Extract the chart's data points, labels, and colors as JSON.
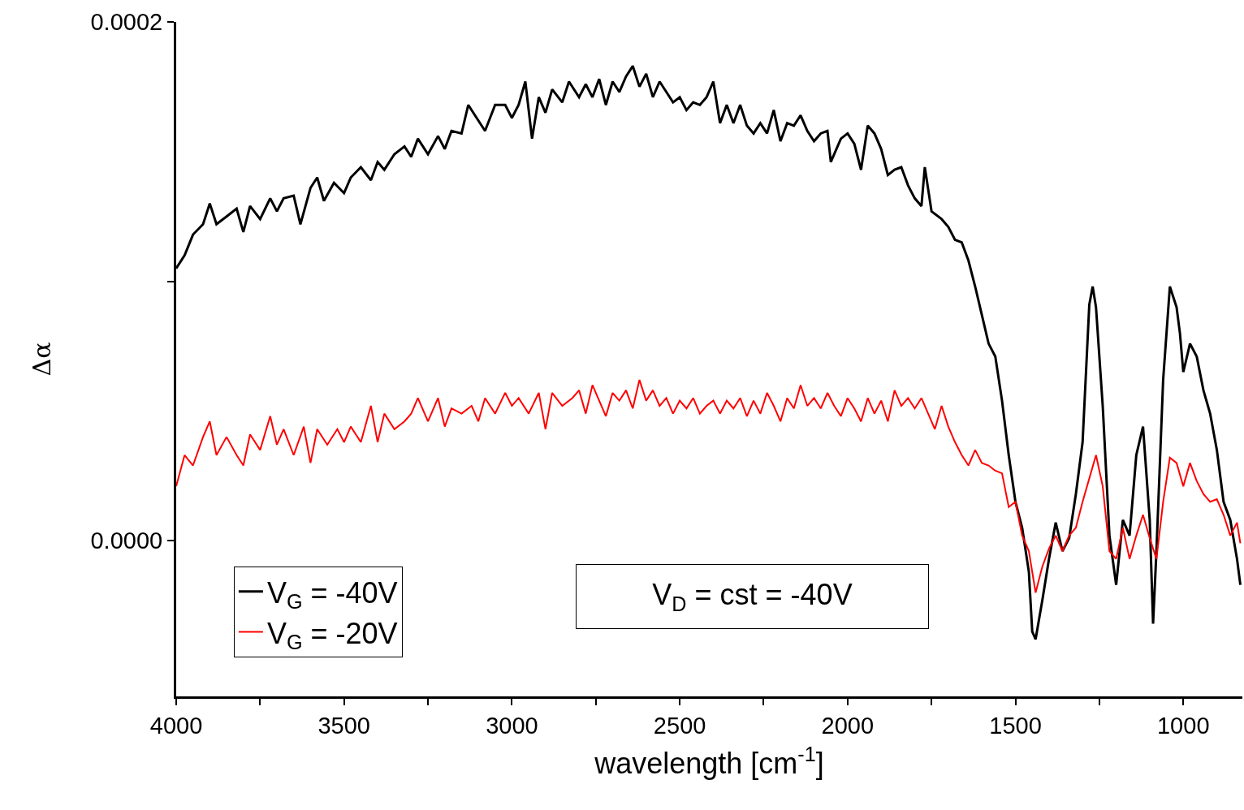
{
  "chart_data": {
    "type": "line",
    "xlabel": "wavelength [cm$^{-1}$]",
    "ylabel": "Δα",
    "xlim": [
      4000,
      824
    ],
    "ylim": [
      -6e-05,
      0.0002
    ],
    "xticks": [
      4000,
      {
        "value": 3750,
        "label": null
      },
      3500,
      {
        "value": 3250,
        "label": null
      },
      3000,
      {
        "value": 2750,
        "label": null
      },
      2500,
      {
        "value": 2250,
        "label": null
      },
      2000,
      {
        "value": 1750,
        "label": null
      },
      1500,
      {
        "value": 1250,
        "label": null
      },
      1000
    ],
    "yticks": [
      {
        "value": 0,
        "label": "0.0000"
      },
      {
        "value": 0.0001,
        "label": null
      },
      {
        "value": 0.0002,
        "label": "0.0002"
      }
    ],
    "grid": false,
    "legend": "bottom left",
    "marker": "none",
    "line_style": "solid",
    "annotations": [
      "V$_{D}$ = cst = -40V"
    ],
    "series": [
      {
        "name": "V$_{G}$ = -40V",
        "color": "#000000",
        "x": [
          4000,
          3975,
          3950,
          3920,
          3900,
          3880,
          3850,
          3820,
          3800,
          3780,
          3750,
          3720,
          3700,
          3680,
          3650,
          3630,
          3600,
          3580,
          3560,
          3530,
          3500,
          3480,
          3450,
          3420,
          3400,
          3380,
          3350,
          3320,
          3300,
          3280,
          3250,
          3220,
          3200,
          3180,
          3150,
          3130,
          3100,
          3080,
          3050,
          3020,
          3000,
          2980,
          2960,
          2940,
          2920,
          2900,
          2880,
          2850,
          2830,
          2800,
          2780,
          2760,
          2740,
          2720,
          2700,
          2680,
          2660,
          2640,
          2620,
          2600,
          2580,
          2560,
          2540,
          2520,
          2500,
          2480,
          2460,
          2440,
          2420,
          2400,
          2380,
          2360,
          2340,
          2320,
          2300,
          2280,
          2260,
          2240,
          2220,
          2200,
          2180,
          2160,
          2140,
          2120,
          2100,
          2080,
          2060,
          2050,
          2020,
          2000,
          1980,
          1960,
          1940,
          1920,
          1900,
          1880,
          1860,
          1840,
          1820,
          1800,
          1780,
          1770,
          1750,
          1720,
          1700,
          1680,
          1660,
          1640,
          1620,
          1600,
          1580,
          1560,
          1540,
          1520,
          1500,
          1480,
          1460,
          1450,
          1440,
          1420,
          1400,
          1380,
          1360,
          1340,
          1320,
          1300,
          1280,
          1270,
          1260,
          1240,
          1220,
          1200,
          1180,
          1160,
          1140,
          1120,
          1100,
          1090,
          1080,
          1060,
          1040,
          1020,
          1010,
          1000,
          980,
          960,
          940,
          920,
          900,
          880,
          860,
          840,
          830
        ],
        "values": [
          0.000105,
          0.00011,
          0.000118,
          0.000122,
          0.00013,
          0.000122,
          0.000125,
          0.000128,
          0.000119,
          0.000129,
          0.000124,
          0.000132,
          0.000127,
          0.000132,
          0.000133,
          0.000122,
          0.000136,
          0.00014,
          0.000131,
          0.000138,
          0.000134,
          0.00014,
          0.000144,
          0.000139,
          0.000146,
          0.000143,
          0.000149,
          0.000152,
          0.000148,
          0.000155,
          0.000149,
          0.000156,
          0.000151,
          0.000158,
          0.000157,
          0.000168,
          0.000162,
          0.000158,
          0.000168,
          0.000168,
          0.000163,
          0.000168,
          0.000177,
          0.000155,
          0.000171,
          0.000165,
          0.000174,
          0.000169,
          0.000177,
          0.000171,
          0.000176,
          0.000171,
          0.000178,
          0.000168,
          0.000177,
          0.000173,
          0.000179,
          0.000183,
          0.000175,
          0.00018,
          0.000171,
          0.000177,
          0.000173,
          0.000169,
          0.000171,
          0.000166,
          0.000169,
          0.000168,
          0.000171,
          0.000177,
          0.000161,
          0.000168,
          0.000161,
          0.000168,
          0.00016,
          0.000157,
          0.000161,
          0.000157,
          0.000166,
          0.000154,
          0.000161,
          0.00016,
          0.000164,
          0.000158,
          0.000154,
          0.000157,
          0.000158,
          0.000146,
          0.000155,
          0.000157,
          0.000153,
          0.000143,
          0.00016,
          0.000157,
          0.000151,
          0.000141,
          0.000143,
          0.000144,
          0.000137,
          0.000132,
          0.000129,
          0.000144,
          0.000127,
          0.000124,
          0.000121,
          0.000116,
          0.000115,
          0.000108,
          9.8e-05,
          8.7e-05,
          7.6e-05,
          7.1e-05,
          5.4e-05,
          3.3e-05,
          1.5e-05,
          5e-06,
          -1.2e-05,
          -3.5e-05,
          -3.8e-05,
          -2.3e-05,
          -7e-06,
          7e-06,
          -4e-06,
          1e-06,
          1.8e-05,
          3.8e-05,
          9.1e-05,
          9.8e-05,
          9e-05,
          5.2e-05,
          2e-06,
          -1.7e-05,
          8e-06,
          2e-06,
          3.3e-05,
          4.4e-05,
          8e-06,
          -3.2e-05,
          -4e-06,
          6.2e-05,
          9.8e-05,
          9e-05,
          8e-05,
          6.5e-05,
          7.6e-05,
          7.1e-05,
          5.8e-05,
          4.9e-05,
          3.5e-05,
          1.5e-05,
          8e-06,
          -7e-06,
          -1.7e-05
        ]
      },
      {
        "name": "V$_{G}$ = -20V",
        "color": "#ff0000",
        "x": [
          4000,
          3975,
          3950,
          3920,
          3900,
          3880,
          3850,
          3820,
          3800,
          3780,
          3750,
          3720,
          3700,
          3680,
          3650,
          3620,
          3600,
          3580,
          3550,
          3520,
          3500,
          3480,
          3450,
          3420,
          3400,
          3380,
          3350,
          3320,
          3300,
          3280,
          3250,
          3220,
          3200,
          3180,
          3150,
          3120,
          3100,
          3080,
          3050,
          3020,
          3000,
          2980,
          2950,
          2920,
          2900,
          2880,
          2850,
          2820,
          2800,
          2780,
          2760,
          2740,
          2720,
          2700,
          2680,
          2660,
          2640,
          2620,
          2600,
          2580,
          2560,
          2540,
          2520,
          2500,
          2480,
          2460,
          2440,
          2420,
          2400,
          2380,
          2360,
          2340,
          2320,
          2300,
          2280,
          2260,
          2240,
          2220,
          2200,
          2180,
          2160,
          2140,
          2120,
          2100,
          2080,
          2060,
          2040,
          2020,
          2000,
          1980,
          1960,
          1940,
          1920,
          1900,
          1880,
          1860,
          1840,
          1820,
          1800,
          1780,
          1760,
          1740,
          1720,
          1700,
          1680,
          1660,
          1640,
          1620,
          1600,
          1580,
          1560,
          1540,
          1520,
          1500,
          1480,
          1460,
          1440,
          1420,
          1400,
          1380,
          1360,
          1340,
          1320,
          1300,
          1280,
          1260,
          1240,
          1220,
          1200,
          1180,
          1160,
          1140,
          1120,
          1100,
          1080,
          1060,
          1040,
          1020,
          1000,
          980,
          960,
          940,
          920,
          900,
          880,
          860,
          840,
          830
        ],
        "values": [
          2.1e-05,
          3.3e-05,
          2.9e-05,
          4e-05,
          4.6e-05,
          3.3e-05,
          4e-05,
          3.3e-05,
          2.9e-05,
          4.1e-05,
          3.5e-05,
          4.8e-05,
          3.7e-05,
          4.3e-05,
          3.3e-05,
          4.4e-05,
          3e-05,
          4.3e-05,
          3.7e-05,
          4.3e-05,
          3.8e-05,
          4.4e-05,
          3.8e-05,
          5.2e-05,
          3.8e-05,
          4.9e-05,
          4.3e-05,
          4.6e-05,
          4.9e-05,
          5.5e-05,
          4.6e-05,
          5.5e-05,
          4.4e-05,
          5.1e-05,
          4.9e-05,
          5.2e-05,
          4.6e-05,
          5.5e-05,
          4.9e-05,
          5.7e-05,
          5.2e-05,
          5.5e-05,
          4.9e-05,
          5.7e-05,
          4.3e-05,
          5.7e-05,
          5.2e-05,
          5.5e-05,
          5.8e-05,
          4.9e-05,
          6e-05,
          5.4e-05,
          4.8e-05,
          5.7e-05,
          5.4e-05,
          5.8e-05,
          5.1e-05,
          6.2e-05,
          5.4e-05,
          5.8e-05,
          5.2e-05,
          5.5e-05,
          4.9e-05,
          5.4e-05,
          5.1e-05,
          5.5e-05,
          4.9e-05,
          5.2e-05,
          5.4e-05,
          4.9e-05,
          5.4e-05,
          5.1e-05,
          5.5e-05,
          4.8e-05,
          5.4e-05,
          4.9e-05,
          5.7e-05,
          5.2e-05,
          4.6e-05,
          5.5e-05,
          5.1e-05,
          6e-05,
          5.2e-05,
          5.5e-05,
          5.1e-05,
          5.7e-05,
          5.2e-05,
          4.8e-05,
          5.5e-05,
          5.1e-05,
          4.6e-05,
          5.5e-05,
          4.9e-05,
          5.4e-05,
          4.6e-05,
          5.8e-05,
          5.2e-05,
          5.5e-05,
          5.1e-05,
          5.5e-05,
          4.9e-05,
          4.3e-05,
          5.2e-05,
          4.4e-05,
          3.8e-05,
          3.3e-05,
          2.9e-05,
          3.5e-05,
          3e-05,
          2.9e-05,
          2.7e-05,
          2.6e-05,
          1.3e-05,
          1.5e-05,
          2e-06,
          -4e-06,
          -2e-05,
          -1e-05,
          -3e-06,
          2e-06,
          -4e-06,
          2e-06,
          5e-06,
          1.5e-05,
          2.4e-05,
          3.3e-05,
          2.1e-05,
          -4e-06,
          -7e-06,
          5e-06,
          -7e-06,
          2e-06,
          1e-05,
          1e-06,
          -7e-06,
          1.5e-05,
          3.2e-05,
          3e-05,
          2.1e-05,
          3e-05,
          2.3e-05,
          1.8e-05,
          1.5e-05,
          1.6e-05,
          1e-05,
          2e-06,
          7e-06,
          -1e-06
        ]
      }
    ]
  }
}
